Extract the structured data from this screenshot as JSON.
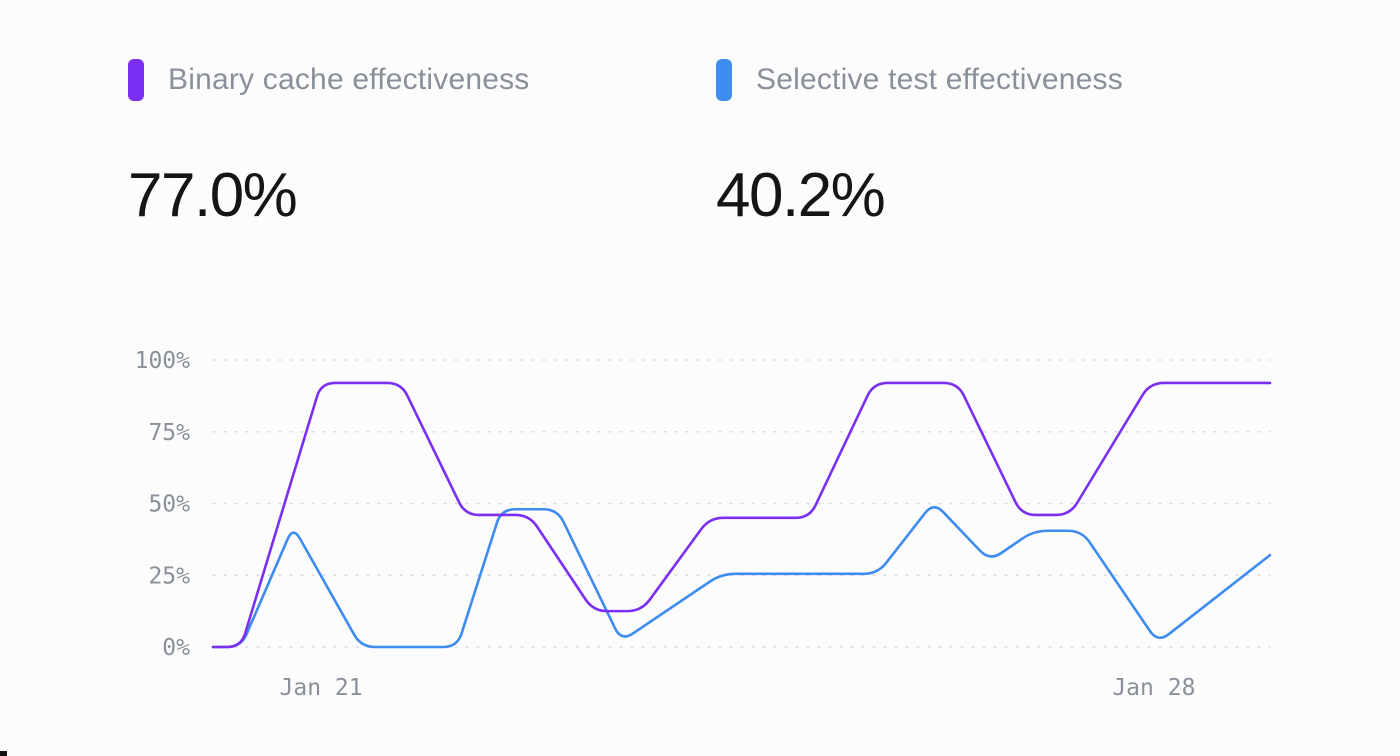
{
  "metrics": [
    {
      "label": "Binary cache effectiveness",
      "value": "77.0%",
      "color": "#7b2ff2"
    },
    {
      "label": "Selective test effectiveness",
      "value": "40.2%",
      "color": "#3f8cf0"
    }
  ],
  "chart_data": {
    "type": "line",
    "y_ticks": [
      "100%",
      "75%",
      "50%",
      "25%",
      "0%"
    ],
    "y_tick_values": [
      100,
      75,
      50,
      25,
      0
    ],
    "ylim": [
      0,
      100
    ],
    "x_ticks": [
      {
        "label": "Jan 21",
        "x": 1.35
      },
      {
        "label": "Jan 28",
        "x": 11.75
      }
    ],
    "xlim": [
      0,
      13.2
    ],
    "grid": true,
    "grid_style": "dotted",
    "series": [
      {
        "name": "Binary cache effectiveness",
        "color": "#7b2ff2",
        "points": [
          [
            0,
            0
          ],
          [
            0.35,
            0
          ],
          [
            1.35,
            92
          ],
          [
            2.35,
            92
          ],
          [
            3.15,
            46
          ],
          [
            3.95,
            46
          ],
          [
            4.75,
            12.5
          ],
          [
            5.35,
            12.5
          ],
          [
            6.2,
            45
          ],
          [
            7.45,
            45
          ],
          [
            8.25,
            92
          ],
          [
            9.3,
            92
          ],
          [
            10.1,
            46
          ],
          [
            10.7,
            46
          ],
          [
            11.7,
            92
          ],
          [
            13.2,
            92
          ]
        ]
      },
      {
        "name": "Selective test effectiveness",
        "color": "#3f8cf0",
        "points": [
          [
            0,
            0
          ],
          [
            0.35,
            0
          ],
          [
            1.0,
            42
          ],
          [
            1.85,
            0
          ],
          [
            3.05,
            0
          ],
          [
            3.6,
            48
          ],
          [
            4.3,
            48
          ],
          [
            5.1,
            2
          ],
          [
            6.35,
            25.5
          ],
          [
            8.3,
            25.5
          ],
          [
            9.0,
            50.5
          ],
          [
            9.7,
            30
          ],
          [
            10.25,
            40.5
          ],
          [
            10.85,
            40.5
          ],
          [
            11.8,
            1.5
          ],
          [
            13.2,
            32
          ]
        ]
      }
    ]
  }
}
